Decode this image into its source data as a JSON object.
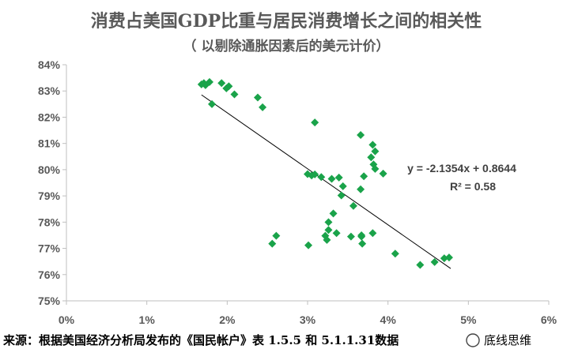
{
  "chart_data": {
    "type": "scatter",
    "title": "消费占美国GDP比重与居民消费增长之间的相关性",
    "subtitle": "（ 以剔除通胀因素后的美元计价）",
    "xlim": [
      0,
      0.06
    ],
    "ylim": [
      0.75,
      0.84
    ],
    "x_ticks": [
      0,
      0.01,
      0.02,
      0.03,
      0.04,
      0.05,
      0.06
    ],
    "x_tick_labels": [
      "0%",
      "1%",
      "2%",
      "3%",
      "4%",
      "5%",
      "6%"
    ],
    "y_ticks": [
      0.75,
      0.76,
      0.77,
      0.78,
      0.79,
      0.8,
      0.81,
      0.82,
      0.83,
      0.84
    ],
    "y_tick_labels": [
      "75%",
      "76%",
      "77%",
      "78%",
      "79%",
      "80%",
      "81%",
      "82%",
      "83%",
      "84%"
    ],
    "grid": false,
    "marker_color": "#1aa34a",
    "trendline_color": "#000000",
    "trendline": {
      "slope": -2.1354,
      "intercept": 0.8644,
      "x_range": [
        0.0168,
        0.0478
      ]
    },
    "equation_label": "y = -2.1354x + 0.8644",
    "r2_label": "R² = 0.58",
    "points": [
      {
        "x": 0.0168,
        "y": 0.8325
      },
      {
        "x": 0.0171,
        "y": 0.833
      },
      {
        "x": 0.0173,
        "y": 0.8322
      },
      {
        "x": 0.0178,
        "y": 0.8334
      },
      {
        "x": 0.0181,
        "y": 0.825
      },
      {
        "x": 0.0193,
        "y": 0.833
      },
      {
        "x": 0.0199,
        "y": 0.831
      },
      {
        "x": 0.0202,
        "y": 0.8318
      },
      {
        "x": 0.0209,
        "y": 0.8287
      },
      {
        "x": 0.0238,
        "y": 0.8275
      },
      {
        "x": 0.0244,
        "y": 0.8238
      },
      {
        "x": 0.0309,
        "y": 0.818
      },
      {
        "x": 0.0366,
        "y": 0.8132
      },
      {
        "x": 0.0381,
        "y": 0.8095
      },
      {
        "x": 0.0384,
        "y": 0.807
      },
      {
        "x": 0.0379,
        "y": 0.8047
      },
      {
        "x": 0.0382,
        "y": 0.802
      },
      {
        "x": 0.0384,
        "y": 0.8003
      },
      {
        "x": 0.0394,
        "y": 0.7985
      },
      {
        "x": 0.037,
        "y": 0.7975
      },
      {
        "x": 0.03,
        "y": 0.7983
      },
      {
        "x": 0.0305,
        "y": 0.7978
      },
      {
        "x": 0.0309,
        "y": 0.7982
      },
      {
        "x": 0.0317,
        "y": 0.7972
      },
      {
        "x": 0.033,
        "y": 0.7965
      },
      {
        "x": 0.0339,
        "y": 0.797
      },
      {
        "x": 0.0344,
        "y": 0.7937
      },
      {
        "x": 0.0366,
        "y": 0.7925
      },
      {
        "x": 0.0342,
        "y": 0.7902
      },
      {
        "x": 0.0357,
        "y": 0.7862
      },
      {
        "x": 0.0332,
        "y": 0.7833
      },
      {
        "x": 0.0326,
        "y": 0.78
      },
      {
        "x": 0.0326,
        "y": 0.777
      },
      {
        "x": 0.0336,
        "y": 0.7758
      },
      {
        "x": 0.0322,
        "y": 0.7748
      },
      {
        "x": 0.0324,
        "y": 0.7732
      },
      {
        "x": 0.0354,
        "y": 0.7745
      },
      {
        "x": 0.0367,
        "y": 0.775
      },
      {
        "x": 0.0367,
        "y": 0.7745
      },
      {
        "x": 0.0381,
        "y": 0.7758
      },
      {
        "x": 0.0368,
        "y": 0.7718
      },
      {
        "x": 0.0261,
        "y": 0.7748
      },
      {
        "x": 0.0256,
        "y": 0.7718
      },
      {
        "x": 0.0301,
        "y": 0.7712
      },
      {
        "x": 0.0409,
        "y": 0.768
      },
      {
        "x": 0.044,
        "y": 0.7637
      },
      {
        "x": 0.0458,
        "y": 0.7648
      },
      {
        "x": 0.047,
        "y": 0.7662
      },
      {
        "x": 0.0476,
        "y": 0.7665
      }
    ]
  },
  "footer": {
    "source": "来源：根据美国经济分析局发布的《国民帐户》表 1.5.5 和 5.1.1.31数据",
    "watermark": "底线思维"
  }
}
